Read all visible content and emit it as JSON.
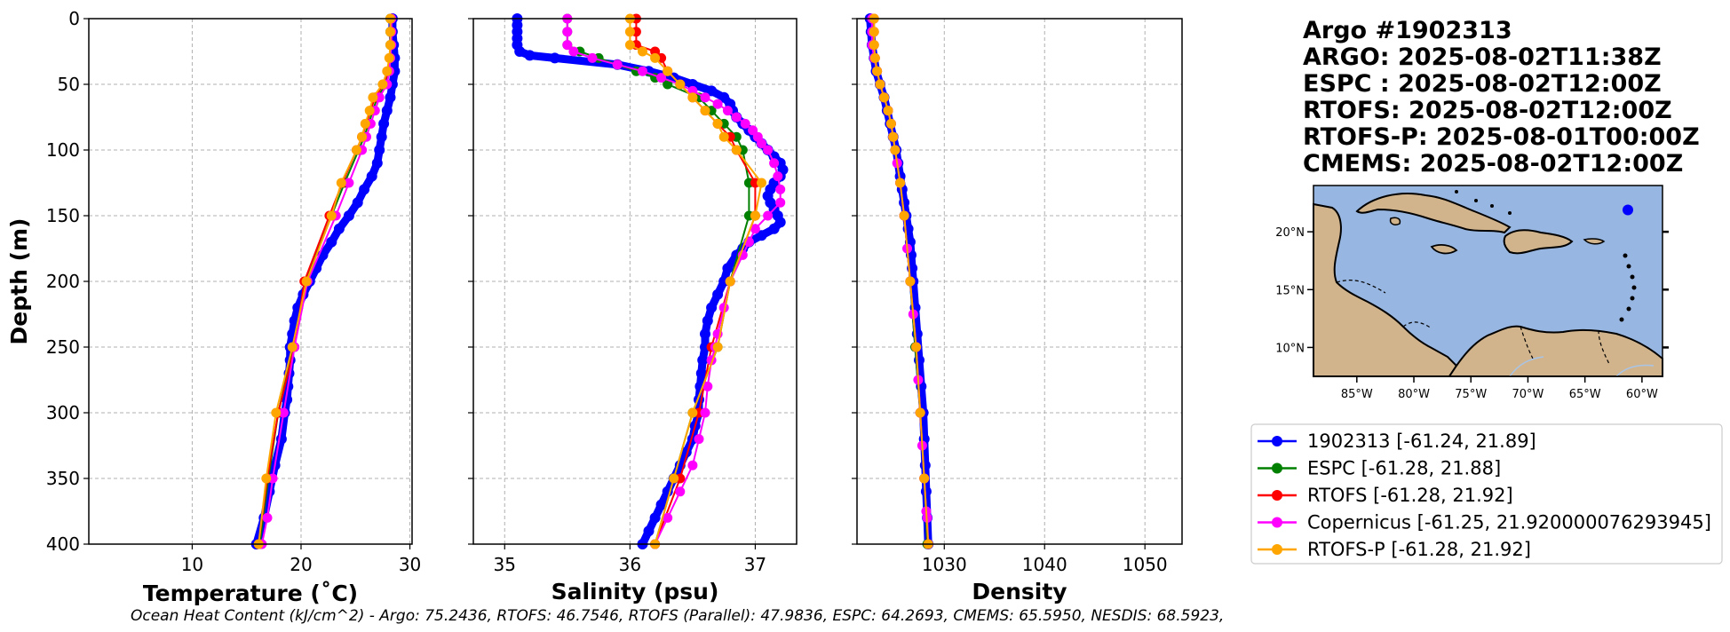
{
  "chart_data": [
    {
      "type": "line",
      "name": "temperature",
      "xlabel": "Temperature (˚C)",
      "ylabel": "Depth (m)",
      "xlim": [
        0.5,
        30.2
      ],
      "ylim": [
        0,
        400
      ],
      "xticks": [
        10,
        20,
        30
      ],
      "yticks": [
        0,
        50,
        100,
        150,
        200,
        250,
        300,
        350,
        400
      ],
      "grid": true,
      "series": [
        {
          "name": "1902313",
          "depth": [
            0,
            10,
            20,
            30,
            40,
            50,
            60,
            70,
            80,
            90,
            100,
            110,
            120,
            130,
            140,
            150,
            160,
            170,
            180,
            190,
            200,
            210,
            220,
            230,
            240,
            250,
            260,
            270,
            280,
            290,
            300,
            320,
            340,
            360,
            380,
            400
          ],
          "values": [
            28.4,
            28.4,
            28.5,
            28.6,
            28.6,
            28.4,
            28.2,
            27.9,
            27.6,
            27.4,
            27.2,
            27.0,
            26.5,
            25.8,
            25.2,
            24.4,
            23.5,
            22.8,
            22.0,
            21.4,
            20.8,
            20.2,
            19.7,
            19.4,
            19.2,
            19.0,
            19.0,
            18.9,
            18.8,
            18.7,
            18.5,
            18.2,
            17.6,
            17.1,
            16.6,
            15.9
          ]
        },
        {
          "name": "ESPC",
          "depth": [
            0,
            10,
            20,
            30,
            40,
            50,
            60,
            70,
            80,
            90,
            100,
            125,
            150,
            200,
            250,
            300,
            350,
            400
          ],
          "values": [
            28.2,
            28.2,
            28.2,
            28.2,
            28.1,
            27.8,
            27.0,
            26.6,
            26.2,
            25.8,
            25.3,
            24.0,
            22.8,
            20.4,
            19.3,
            17.9,
            17.0,
            16.2
          ]
        },
        {
          "name": "RTOFS",
          "depth": [
            0,
            10,
            20,
            30,
            40,
            50,
            60,
            70,
            80,
            90,
            100,
            125,
            150,
            200,
            250,
            300,
            350,
            400
          ],
          "values": [
            28.3,
            28.3,
            28.3,
            28.2,
            28.0,
            27.6,
            26.8,
            26.4,
            26.0,
            25.6,
            25.1,
            23.8,
            22.6,
            20.3,
            19.4,
            17.9,
            16.9,
            16.1
          ]
        },
        {
          "name": "Copernicus",
          "depth": [
            0,
            10,
            20,
            30,
            40,
            50,
            60,
            70,
            80,
            90,
            100,
            125,
            150,
            200,
            250,
            300,
            350,
            380,
            400
          ],
          "values": [
            28.3,
            28.3,
            28.3,
            28.2,
            28.1,
            27.9,
            27.2,
            26.8,
            26.4,
            26.0,
            25.6,
            24.4,
            23.2,
            20.6,
            19.4,
            18.4,
            17.4,
            16.9,
            16.4
          ]
        },
        {
          "name": "RTOFS-P",
          "depth": [
            0,
            10,
            20,
            30,
            40,
            50,
            60,
            70,
            80,
            90,
            100,
            125,
            150,
            200,
            250,
            300,
            350,
            400
          ],
          "values": [
            28.2,
            28.2,
            28.2,
            28.1,
            27.9,
            27.5,
            26.6,
            26.3,
            25.9,
            25.6,
            25.1,
            23.7,
            22.8,
            20.5,
            19.2,
            17.7,
            16.8,
            16.1
          ]
        }
      ]
    },
    {
      "type": "line",
      "name": "salinity",
      "xlabel": "Salinity (psu)",
      "xlim": [
        34.75,
        37.33
      ],
      "ylim": [
        0,
        400
      ],
      "xticks": [
        35,
        36,
        37
      ],
      "yticks": [
        0,
        50,
        100,
        150,
        200,
        250,
        300,
        350,
        400
      ],
      "grid": true,
      "series": [
        {
          "name": "1902313",
          "depth": [
            0,
            5,
            10,
            15,
            20,
            25,
            28,
            30,
            35,
            40,
            45,
            50,
            55,
            60,
            65,
            70,
            75,
            80,
            85,
            90,
            95,
            100,
            105,
            110,
            115,
            120,
            125,
            130,
            135,
            140,
            145,
            150,
            155,
            160,
            165,
            170,
            175,
            180,
            190,
            200,
            210,
            220,
            230,
            240,
            250,
            260,
            270,
            280,
            290,
            300,
            310,
            320,
            330,
            340,
            350,
            360,
            370,
            380,
            390,
            400
          ],
          "values": [
            35.1,
            35.1,
            35.1,
            35.1,
            35.1,
            35.12,
            35.2,
            35.4,
            35.9,
            36.15,
            36.35,
            36.5,
            36.65,
            36.75,
            36.8,
            36.82,
            36.85,
            36.9,
            36.95,
            37.0,
            37.05,
            37.1,
            37.15,
            37.2,
            37.22,
            37.2,
            37.15,
            37.12,
            37.1,
            37.12,
            37.15,
            37.18,
            37.2,
            37.15,
            37.05,
            36.95,
            36.9,
            36.85,
            36.78,
            36.75,
            36.7,
            36.65,
            36.62,
            36.6,
            36.6,
            36.58,
            36.57,
            36.56,
            36.55,
            36.55,
            36.52,
            36.5,
            36.45,
            36.4,
            36.35,
            36.3,
            36.25,
            36.2,
            36.15,
            36.1
          ]
        },
        {
          "name": "ESPC",
          "depth": [
            0,
            10,
            20,
            25,
            30,
            35,
            40,
            45,
            50,
            60,
            70,
            80,
            90,
            100,
            125,
            150,
            200,
            250,
            300,
            350,
            400
          ],
          "values": [
            35.5,
            35.5,
            35.5,
            35.6,
            35.75,
            35.9,
            36.05,
            36.2,
            36.3,
            36.55,
            36.65,
            36.75,
            36.85,
            36.9,
            36.95,
            36.95,
            36.8,
            36.7,
            36.5,
            36.35,
            36.2
          ]
        },
        {
          "name": "RTOFS",
          "depth": [
            0,
            10,
            20,
            25,
            30,
            40,
            50,
            60,
            70,
            80,
            90,
            100,
            125,
            150,
            200,
            250,
            300,
            350,
            400
          ],
          "values": [
            36.05,
            36.05,
            36.05,
            36.2,
            36.25,
            36.3,
            36.4,
            36.5,
            36.6,
            36.7,
            36.8,
            36.85,
            37.0,
            37.0,
            36.8,
            36.65,
            36.55,
            36.4,
            36.2
          ]
        },
        {
          "name": "Copernicus",
          "depth": [
            0,
            10,
            20,
            25,
            30,
            35,
            40,
            45,
            50,
            55,
            60,
            65,
            70,
            75,
            80,
            85,
            90,
            95,
            100,
            110,
            120,
            130,
            140,
            150,
            160,
            170,
            180,
            200,
            220,
            240,
            250,
            260,
            280,
            300,
            320,
            340,
            360,
            380,
            400
          ],
          "values": [
            35.5,
            35.5,
            35.5,
            35.55,
            35.7,
            35.9,
            36.1,
            36.25,
            36.4,
            36.5,
            36.6,
            36.7,
            36.78,
            36.85,
            36.92,
            36.98,
            37.02,
            37.05,
            37.1,
            37.15,
            37.18,
            37.2,
            37.2,
            37.1,
            37.0,
            36.95,
            36.9,
            36.8,
            36.75,
            36.7,
            36.68,
            36.65,
            36.62,
            36.6,
            36.55,
            36.5,
            36.4,
            36.3,
            36.2
          ]
        },
        {
          "name": "RTOFS-P",
          "depth": [
            0,
            10,
            20,
            25,
            30,
            40,
            50,
            60,
            70,
            80,
            90,
            100,
            125,
            150,
            200,
            250,
            300,
            350,
            400
          ],
          "values": [
            36.0,
            36.0,
            36.0,
            36.1,
            36.2,
            36.3,
            36.4,
            36.5,
            36.6,
            36.7,
            36.75,
            36.85,
            37.05,
            37.0,
            36.8,
            36.7,
            36.5,
            36.35,
            36.2
          ]
        }
      ]
    },
    {
      "type": "line",
      "name": "density",
      "xlabel": "Density",
      "xlim": [
        1021.3,
        1053.7
      ],
      "ylim": [
        0,
        400
      ],
      "xticks": [
        1030,
        1040,
        1050
      ],
      "yticks": [
        0,
        50,
        100,
        150,
        200,
        250,
        300,
        350,
        400
      ],
      "grid": true,
      "series": [
        {
          "name": "1902313",
          "depth": [
            0,
            10,
            20,
            30,
            40,
            50,
            60,
            70,
            80,
            90,
            100,
            110,
            120,
            130,
            140,
            150,
            160,
            170,
            180,
            190,
            200,
            220,
            240,
            260,
            280,
            300,
            320,
            340,
            360,
            380,
            400
          ],
          "values": [
            1022.6,
            1022.7,
            1022.8,
            1023.0,
            1023.2,
            1023.6,
            1024.0,
            1024.3,
            1024.6,
            1024.9,
            1025.2,
            1025.4,
            1025.6,
            1025.8,
            1026.0,
            1026.2,
            1026.4,
            1026.6,
            1026.7,
            1026.8,
            1026.9,
            1027.1,
            1027.3,
            1027.5,
            1027.7,
            1027.9,
            1028.0,
            1028.1,
            1028.2,
            1028.3,
            1028.4
          ]
        },
        {
          "name": "ESPC",
          "depth": [
            0,
            10,
            20,
            30,
            40,
            50,
            60,
            70,
            80,
            90,
            100,
            125,
            150,
            200,
            250,
            300,
            350,
            400
          ],
          "values": [
            1022.9,
            1022.9,
            1022.9,
            1023.0,
            1023.3,
            1023.6,
            1024.0,
            1024.4,
            1024.7,
            1024.9,
            1025.1,
            1025.6,
            1026.0,
            1026.6,
            1027.1,
            1027.6,
            1028.0,
            1028.3
          ]
        },
        {
          "name": "RTOFS",
          "depth": [
            0,
            10,
            20,
            30,
            40,
            50,
            60,
            70,
            80,
            90,
            100,
            125,
            150,
            200,
            250,
            300,
            350,
            400
          ],
          "values": [
            1023.0,
            1023.0,
            1023.0,
            1023.1,
            1023.3,
            1023.6,
            1024.0,
            1024.4,
            1024.7,
            1024.9,
            1025.1,
            1025.6,
            1026.0,
            1026.6,
            1027.2,
            1027.6,
            1028.0,
            1028.4
          ]
        },
        {
          "name": "Copernicus",
          "depth": [
            0,
            10,
            20,
            30,
            40,
            50,
            60,
            70,
            80,
            90,
            100,
            110,
            125,
            150,
            175,
            200,
            225,
            250,
            275,
            300,
            325,
            350,
            375,
            380,
            400
          ],
          "values": [
            1022.8,
            1022.8,
            1022.8,
            1023.0,
            1023.3,
            1023.6,
            1024.0,
            1024.4,
            1024.7,
            1024.9,
            1025.1,
            1025.3,
            1025.6,
            1026.0,
            1026.3,
            1026.6,
            1026.9,
            1027.2,
            1027.4,
            1027.6,
            1027.8,
            1028.0,
            1028.2,
            1028.3,
            1028.4
          ]
        },
        {
          "name": "RTOFS-P",
          "depth": [
            0,
            10,
            20,
            30,
            40,
            50,
            60,
            70,
            80,
            90,
            100,
            125,
            150,
            200,
            250,
            300,
            350,
            400
          ],
          "values": [
            1023.0,
            1023.0,
            1023.0,
            1023.1,
            1023.3,
            1023.6,
            1024.0,
            1024.4,
            1024.7,
            1024.9,
            1025.1,
            1025.6,
            1026.0,
            1026.6,
            1027.2,
            1027.6,
            1028.0,
            1028.4
          ]
        }
      ]
    }
  ],
  "series_colors": {
    "1902313": "#0000ff",
    "ESPC": "#008000",
    "RTOFS": "#ff0000",
    "Copernicus": "#ff00ff",
    "RTOFS-P": "#ffa500"
  },
  "title_lines": [
    "Argo #1902313",
    "ARGO: 2025-08-02T11:38Z",
    "ESPC : 2025-08-02T12:00Z",
    "RTOFS: 2025-08-02T12:00Z",
    "RTOFS-P: 2025-08-01T00:00Z",
    "CMEMS: 2025-08-02T12:00Z"
  ],
  "legend": [
    {
      "label": "1902313 [-61.24, 21.89]",
      "color": "#0000ff"
    },
    {
      "label": "ESPC [-61.28, 21.88]",
      "color": "#008000"
    },
    {
      "label": "RTOFS [-61.28, 21.92]",
      "color": "#ff0000"
    },
    {
      "label": "Copernicus [-61.25, 21.920000076293945]",
      "color": "#ff00ff"
    },
    {
      "label": "RTOFS-P [-61.28, 21.92]",
      "color": "#ffa500"
    }
  ],
  "map": {
    "lon_ticks": [
      "85°W",
      "80°W",
      "75°W",
      "70°W",
      "65°W",
      "60°W"
    ],
    "lat_ticks": [
      "20°N",
      "15°N",
      "10°N"
    ],
    "lon_values": [
      -85,
      -80,
      -75,
      -70,
      -65,
      -60
    ],
    "lat_values": [
      20,
      15,
      10
    ],
    "lon_range": [
      -88.8,
      -58.2
    ],
    "lat_range": [
      7.5,
      24.0
    ],
    "float_position": [
      -61.24,
      21.89
    ],
    "ocean_color": "#97b6e1",
    "land_color": "#d2b48c"
  },
  "ohc_text": "Ocean Heat Content (kJ/cm^2) - Argo: 75.2436,  RTOFS: 46.7546,  RTOFS (Parallel): 47.9836,  ESPC: 64.2693,  CMEMS: 65.5950,  NESDIS: 68.5923,"
}
